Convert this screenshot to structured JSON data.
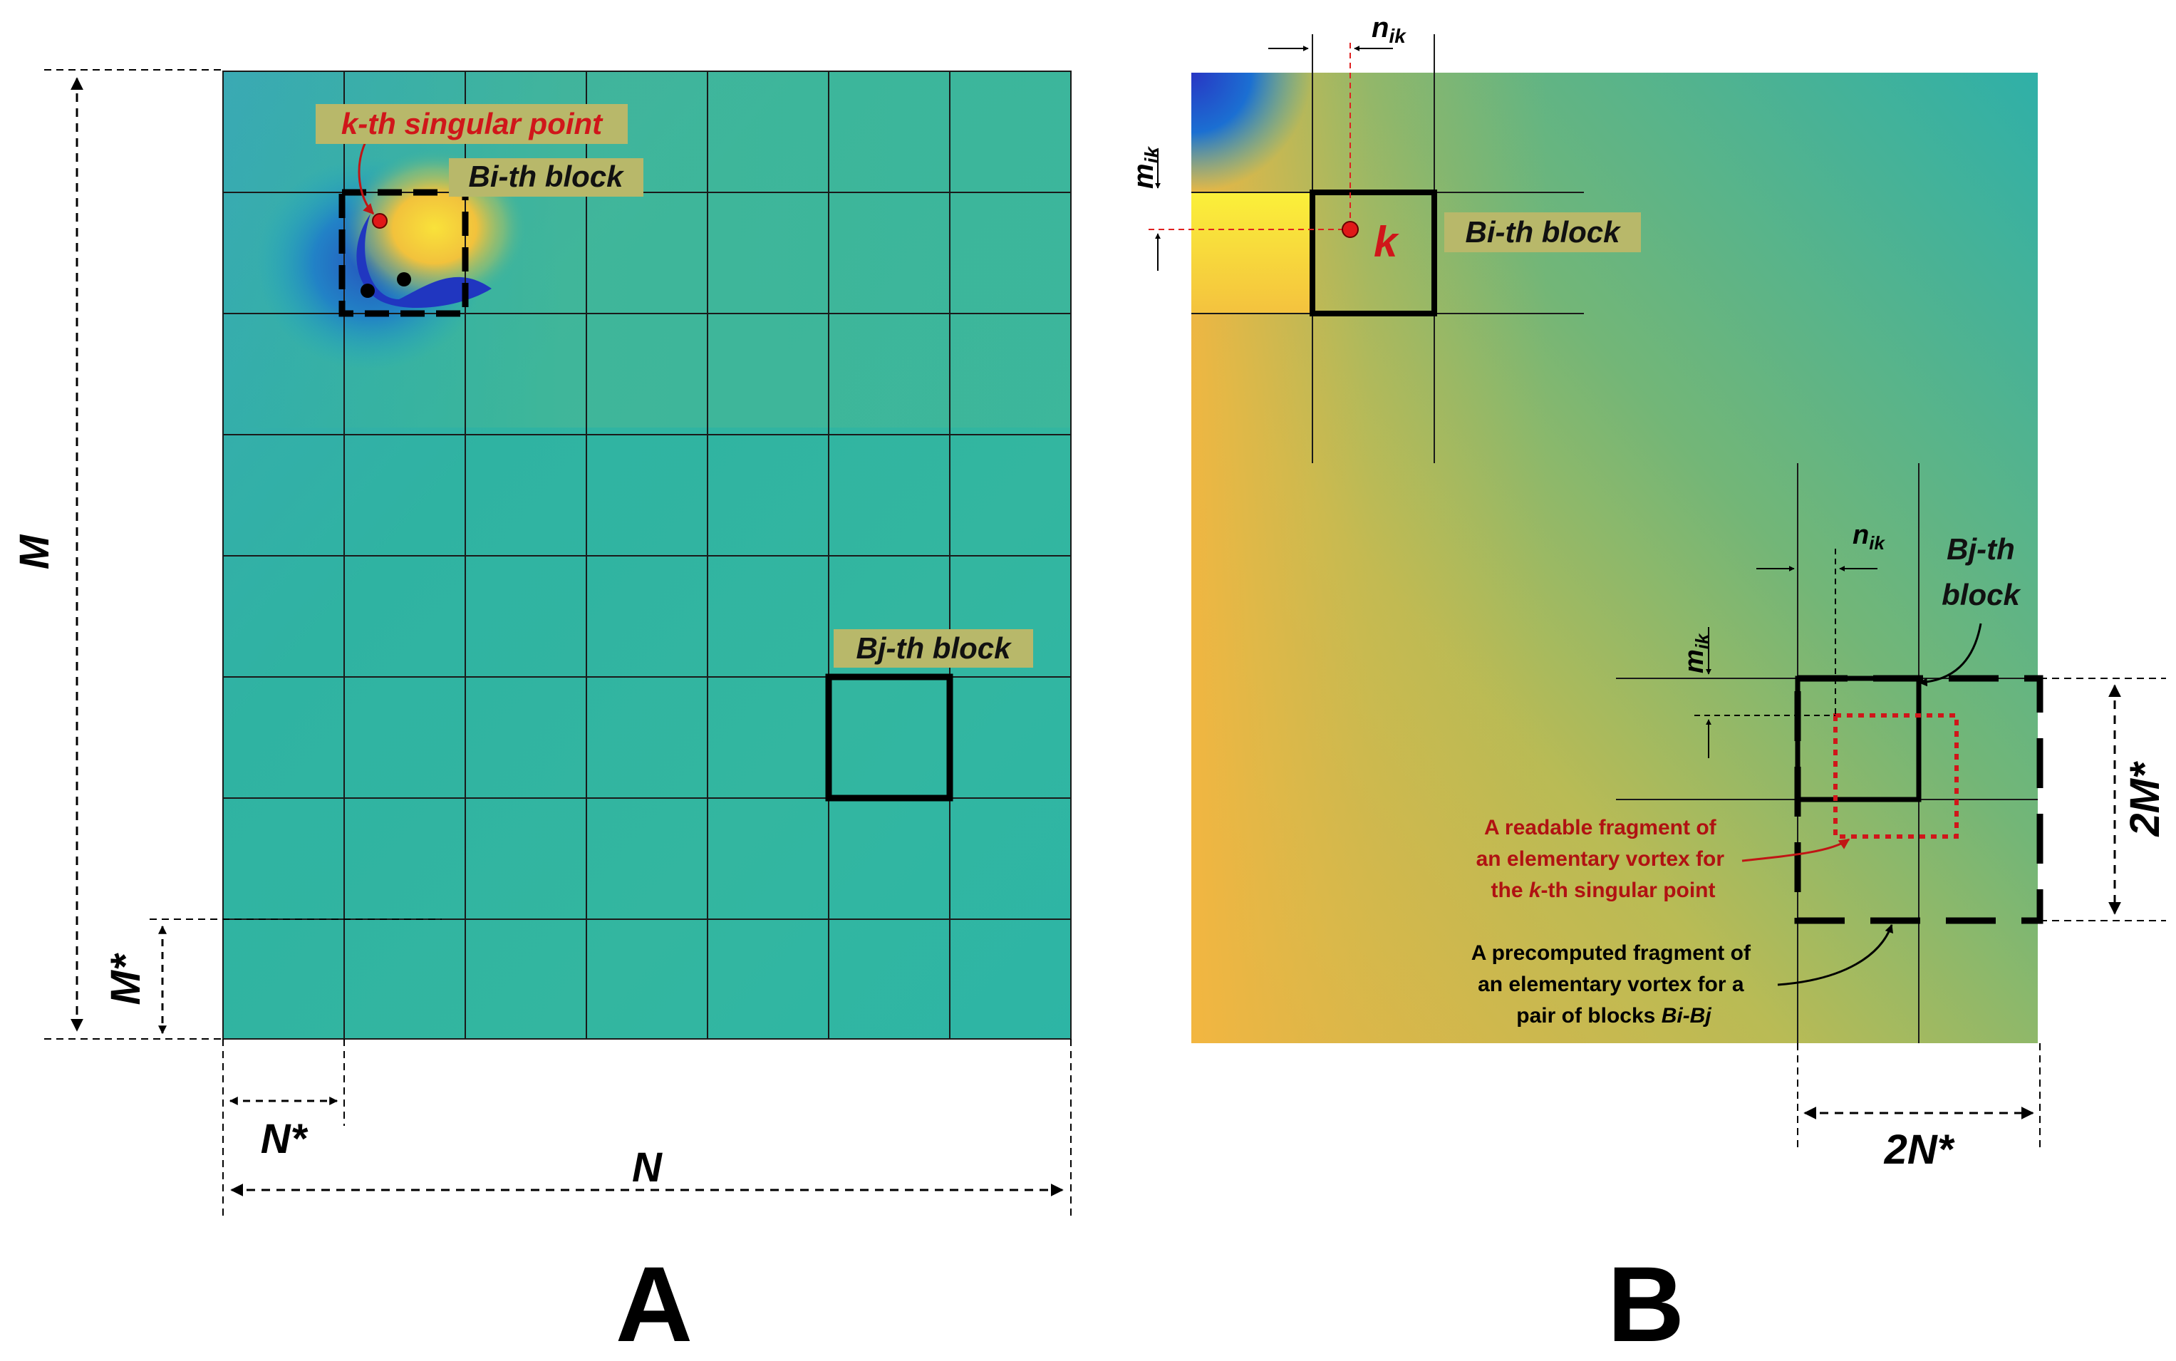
{
  "panel_a": {
    "letter": "A",
    "singular_label": "k-th singular point",
    "bi_label": "Bi-th block",
    "bj_label": "Bj-th block",
    "dim_m": "M",
    "dim_n": "N",
    "dim_m_star": "M*",
    "dim_n_star": "N*"
  },
  "panel_b": {
    "letter": "B",
    "bi_label": "Bi-th block",
    "k_label": "k",
    "n_ik_top": "n",
    "n_ik_top_sub": "ik",
    "m_ik_top": "m",
    "m_ik_top_sub": "ik",
    "n_ik_mid": "n",
    "n_ik_mid_sub": "ik",
    "m_ik_mid": "m",
    "m_ik_mid_sub": "ik",
    "bj_label_line1": "Bj-th",
    "bj_label_line2": "block",
    "dim_2m": "2M*",
    "dim_2n": "2N*",
    "readable_note": {
      "line1": "A readable fragment of",
      "line2": "an elementary vortex for",
      "line3_pre": "the ",
      "line3_k": "k",
      "line3_post": "-th singular point"
    },
    "precomputed_note": {
      "line1": "A precomputed fragment of",
      "line2": "an elementary vortex for a",
      "line3_pre": "pair of blocks ",
      "line3_em": "Bi-Bj"
    }
  },
  "colors": {
    "grid_line": "#1a1a1a",
    "label_bg": "#b8b86a",
    "red_text": "#d0161a",
    "dark_red_text": "#b01212",
    "field_teal": "#2fb2a4",
    "field_yellow": "#f7d83a",
    "field_blue": "#1f3fc8"
  }
}
